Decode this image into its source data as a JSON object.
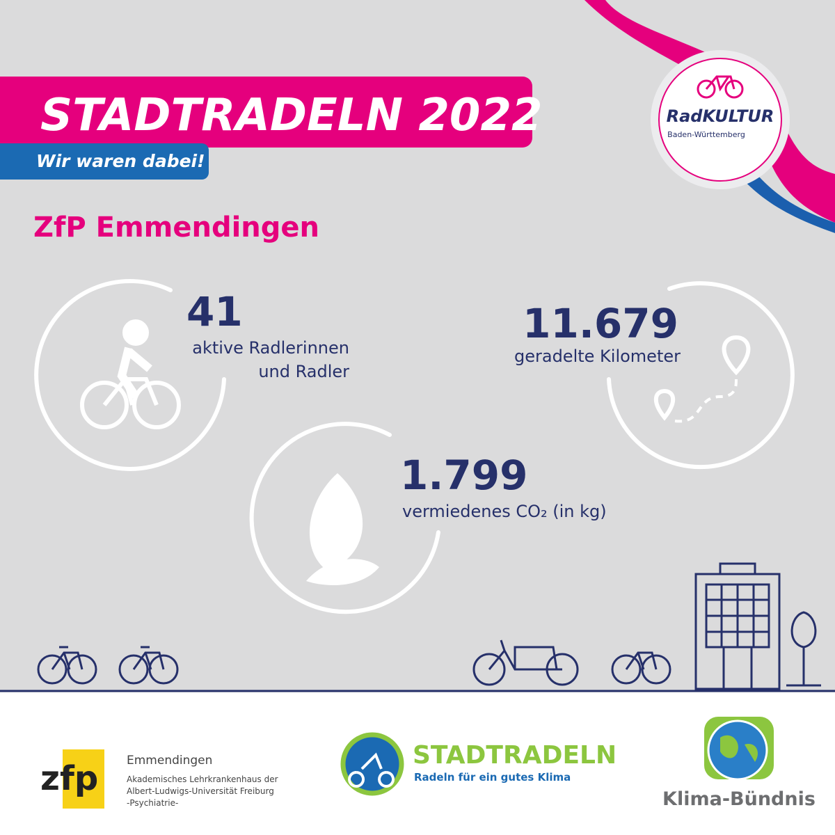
{
  "header": {
    "title": "STADTRADELN 2022",
    "subtitle": "Wir waren dabei!"
  },
  "badge": {
    "name": "RadKULTUR",
    "region": "Baden-Württemberg"
  },
  "organization": "ZfP Emmendingen",
  "stats": [
    {
      "value": "41",
      "label_lines": [
        "aktive Radlerinnen",
        "und Radler"
      ]
    },
    {
      "value": "11.679",
      "label_lines": [
        "geradelte Kilometer"
      ]
    },
    {
      "value": "1.799",
      "label_lines": [
        "vermiedenes CO₂ (in kg)"
      ]
    }
  ],
  "footer": {
    "zfp": {
      "logo": "zfp",
      "name": "Emmendingen",
      "lines": [
        "Akademisches Lehrkrankenhaus der",
        "Albert-Ludwigs-Universität Freiburg",
        "-Psychiatrie-"
      ]
    },
    "stadtradeln": {
      "name": "STADTRADELN",
      "slogan": "Radeln für ein gutes Klima"
    },
    "klima": {
      "name": "Klima-Bündnis"
    }
  }
}
